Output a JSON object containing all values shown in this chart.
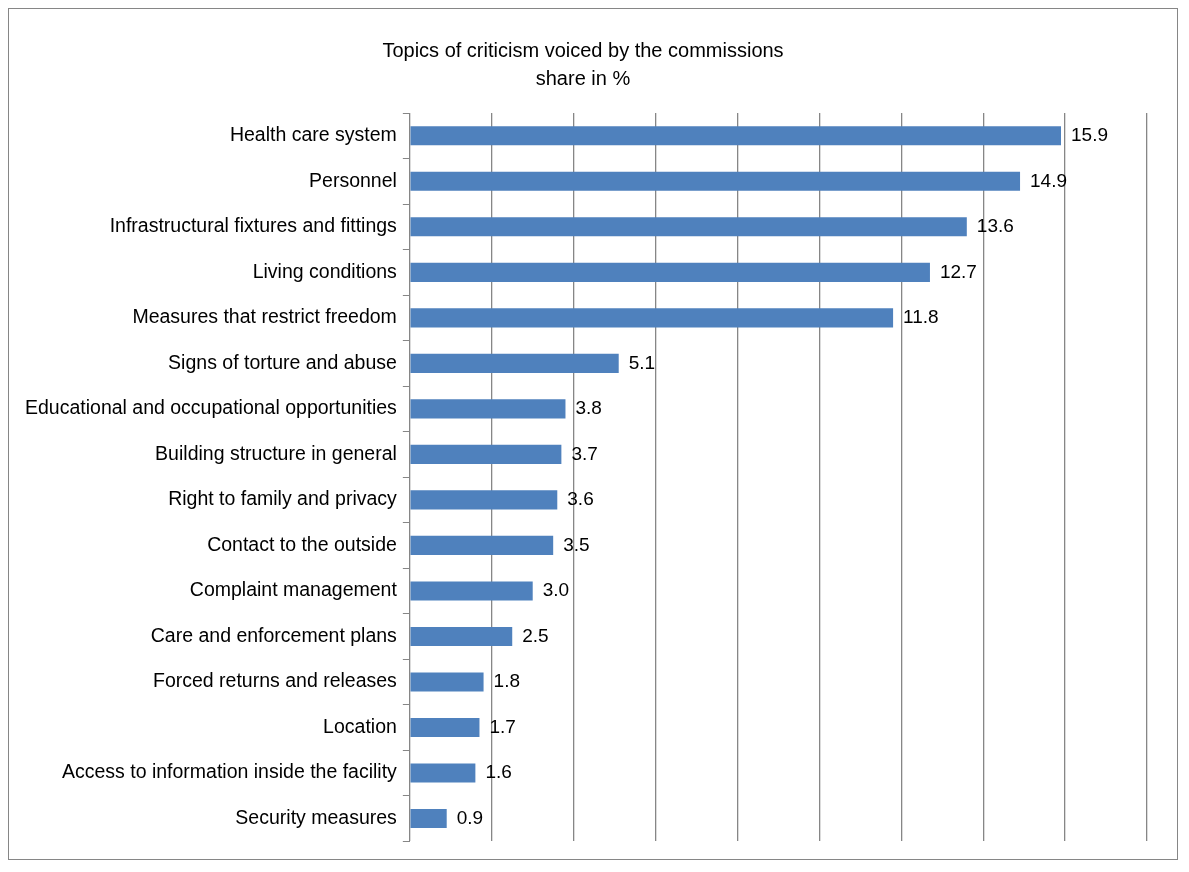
{
  "chart_data": {
    "type": "bar",
    "orientation": "horizontal",
    "title": "Topics of criticism voiced by the commissions",
    "subtitle": "share in %",
    "categories": [
      "Health care system",
      "Personnel",
      "Infrastructural fixtures and fittings",
      "Living conditions",
      "Measures that restrict freedom",
      "Signs of torture and abuse",
      "Educational and occupational opportunities",
      "Building structure in general",
      "Right to family and privacy",
      "Contact to the outside",
      "Complaint management",
      "Care and enforcement plans",
      "Forced returns and releases",
      "Location",
      "Access to information inside the facility",
      "Security measures"
    ],
    "values": [
      15.9,
      14.9,
      13.6,
      12.7,
      11.8,
      5.1,
      3.8,
      3.7,
      3.6,
      3.5,
      3.0,
      2.5,
      1.8,
      1.7,
      1.6,
      0.9
    ],
    "color": "#4f81bd",
    "xlim": [
      0,
      18
    ],
    "xticks": [
      {
        "value": 0,
        "label": null
      },
      {
        "value": 2,
        "label": null
      },
      {
        "value": 4,
        "label": null
      },
      {
        "value": 6,
        "label": null
      },
      {
        "value": 8,
        "label": null
      },
      {
        "value": 10,
        "label": null
      },
      {
        "value": 12,
        "label": null
      },
      {
        "value": 14,
        "label": null
      },
      {
        "value": 16,
        "label": null
      },
      {
        "value": 18,
        "label": null
      }
    ],
    "tick_labels": "y",
    "grid": "x",
    "value_labels": [
      "15.9",
      "14.9",
      "13.6",
      "12.7",
      "11.8",
      "5.1",
      "3.8",
      "3.7",
      "3.6",
      "3.5",
      "3.0",
      "2.5",
      "1.8",
      "1.7",
      "1.6",
      "0.9"
    ],
    "legend": false
  }
}
